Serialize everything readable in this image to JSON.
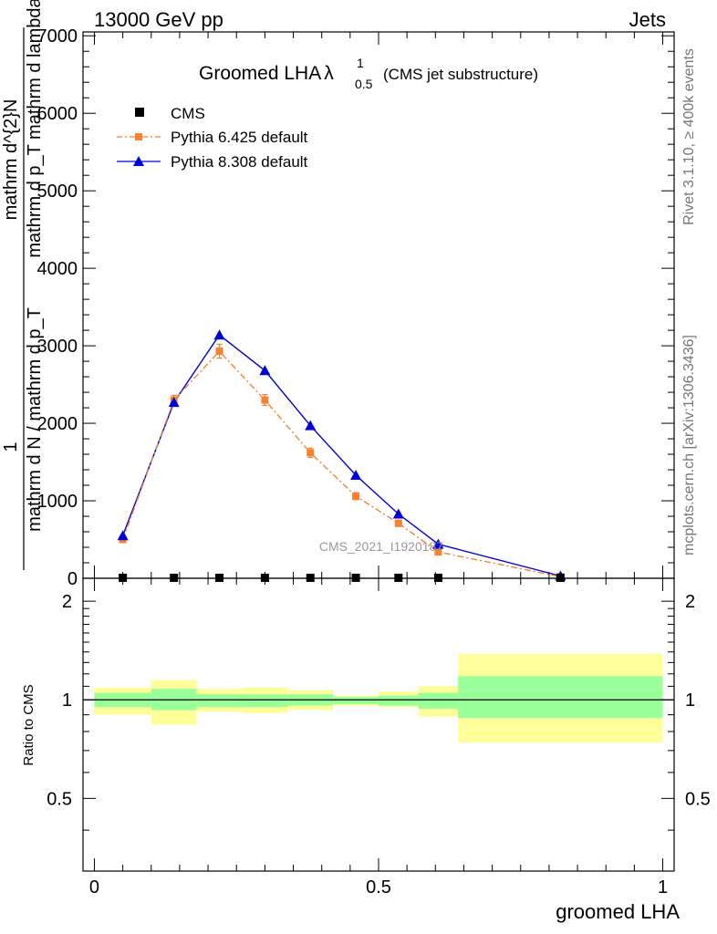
{
  "header": {
    "energy_label": "13000 GeV pp",
    "process_label": "Jets",
    "side_right_top": "Rivet 3.1.10, ≥ 400k events",
    "side_right_bottom": "mcplots.cern.ch [arXiv:1306.3436]",
    "watermark": "CMS_2021_I1920187"
  },
  "chart_data": {
    "type": "line",
    "title": "Groomed LHA",
    "title_symbol": "λ",
    "title_sup": "1",
    "title_sub": "0.5",
    "title_suffix": "(CMS jet substructure)",
    "xlabel": "groomed LHA",
    "ylabel_numerator": "mathrm d^{2}N",
    "ylabel_denominator": "mathrm d p_T mathrm d lambda",
    "ylabel_prefix_num": "1",
    "ylabel_prefix_den": "mathrm d N / mathrm d p_T",
    "xlim": [
      -0.02,
      1.02
    ],
    "ylim": [
      0,
      7050
    ],
    "x_ticks": [
      0,
      0.5,
      1
    ],
    "x_tick_labels": [
      "0",
      "0.5",
      "1"
    ],
    "y_ticks": [
      0,
      1000,
      2000,
      3000,
      4000,
      5000,
      6000,
      7000
    ],
    "y_tick_labels": [
      "0",
      "1000",
      "2000",
      "3000",
      "4000",
      "5000",
      "6000",
      "7000"
    ],
    "bin_edges": [
      0,
      0.1,
      0.18,
      0.26,
      0.34,
      0.42,
      0.5,
      0.57,
      0.64,
      1.0
    ],
    "x": [
      0.05,
      0.14,
      0.22,
      0.3,
      0.38,
      0.46,
      0.535,
      0.605,
      0.82
    ],
    "series": [
      {
        "name": "CMS",
        "color": "#000000",
        "marker": "square",
        "values": [
          0,
          0,
          0,
          0,
          0,
          0,
          0,
          0,
          0
        ]
      },
      {
        "name": "Pythia 6.425 default",
        "color": "#f58231",
        "marker": "square",
        "values": [
          500,
          2300,
          2930,
          2300,
          1620,
          1060,
          710,
          340,
          20
        ],
        "errors": [
          40,
          60,
          90,
          70,
          60,
          45,
          40,
          25,
          5
        ]
      },
      {
        "name": "Pythia 8.308 default",
        "color": "#0000d8",
        "marker": "triangle",
        "values": [
          550,
          2270,
          3140,
          2680,
          1970,
          1330,
          830,
          440,
          30
        ]
      }
    ],
    "ratio": {
      "ylabel": "Ratio to CMS",
      "ylim": [
        0.3,
        2.35
      ],
      "y_ticks": [
        0.5,
        1,
        2
      ],
      "y_tick_labels": [
        "0.5",
        "1",
        "2"
      ],
      "stat_band_lo": [
        0.95,
        0.93,
        0.95,
        0.95,
        0.96,
        0.97,
        0.96,
        0.94,
        0.88
      ],
      "stat_band_hi": [
        1.05,
        1.08,
        1.04,
        1.04,
        1.04,
        1.02,
        1.03,
        1.05,
        1.18
      ],
      "total_band_lo": [
        0.9,
        0.84,
        0.92,
        0.91,
        0.93,
        0.96,
        0.95,
        0.89,
        0.74
      ],
      "total_band_hi": [
        1.09,
        1.15,
        1.08,
        1.09,
        1.07,
        1.03,
        1.06,
        1.1,
        1.38
      ],
      "stat_color": "#99ff99",
      "total_color": "#ffff99"
    },
    "grid": false,
    "legend_position": "top-left"
  }
}
